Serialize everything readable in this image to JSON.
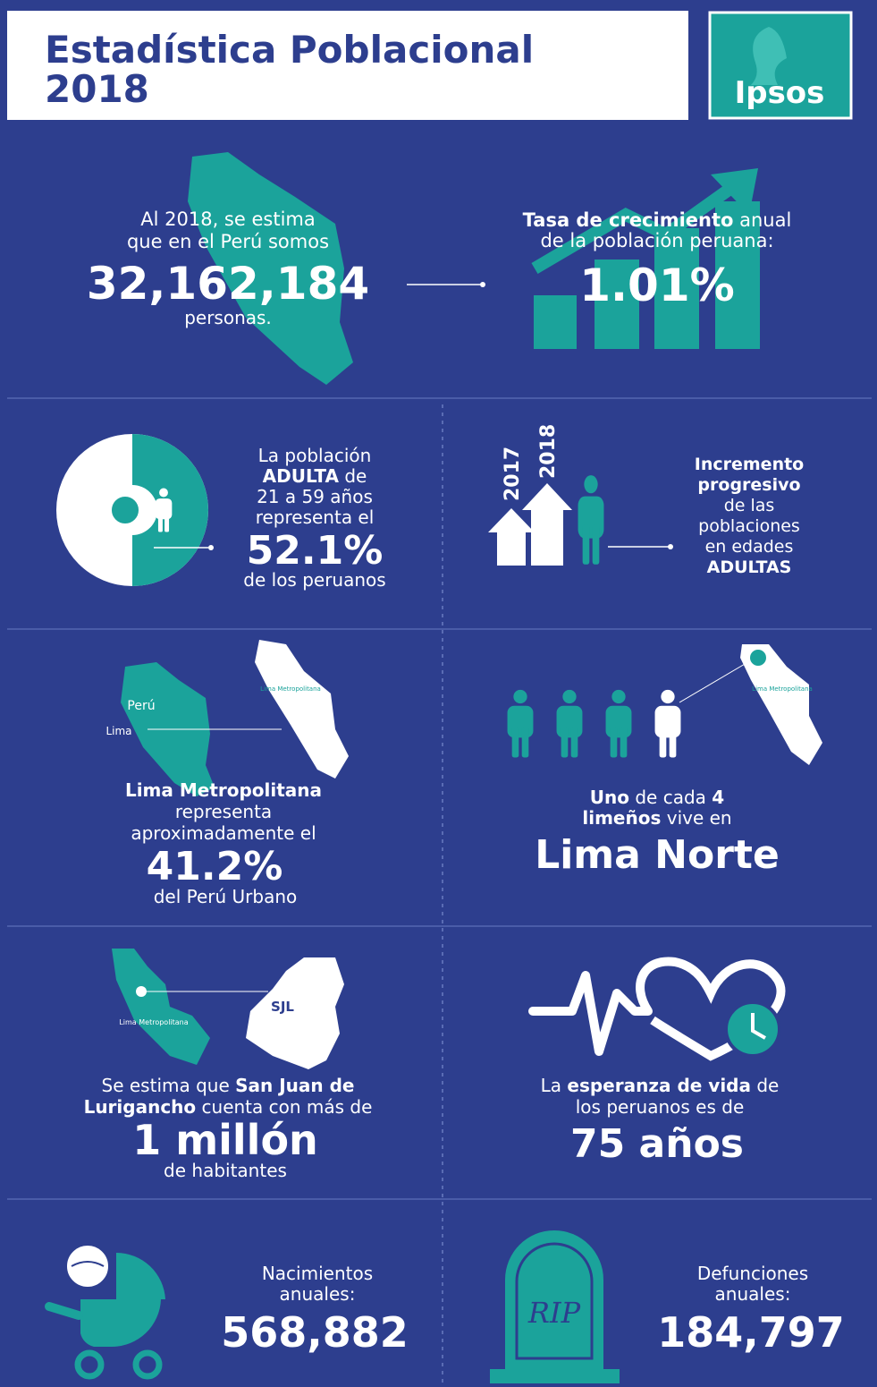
{
  "header": {
    "title_line1": "Estadística Poblacional",
    "title_line2": "2018",
    "logo": "Ipsos"
  },
  "population": {
    "line1": "Al 2018, se estima",
    "line2": "que en el Perú somos",
    "value": "32,162,184",
    "unit": "personas."
  },
  "growth": {
    "bold": "Tasa de crecimiento",
    "rest": " anual",
    "line2": "de la población peruana:",
    "value": "1.01%"
  },
  "adult": {
    "line1": "La población",
    "line2_bold": "ADULTA",
    "line2_rest": " de",
    "line3": "21 a 59 años",
    "line4": "representa el",
    "value": "52.1%",
    "line5": "de los peruanos"
  },
  "increment": {
    "year1": "2017",
    "year2": "2018",
    "line1": "Incremento",
    "line2": "progresivo",
    "line3": "de las",
    "line4": "poblaciones",
    "line5": "en edades",
    "line6": "ADULTAS"
  },
  "lima": {
    "map_peru": "Perú",
    "map_lima": "Lima",
    "map_metro": "Lima Metropolitana",
    "line1": "Lima Metropolitana",
    "line2": "representa",
    "line3": "aproximadamente el",
    "value": "41.2%",
    "line4": "del Perú Urbano"
  },
  "lima_norte": {
    "map_metro": "Lima Metropolitana",
    "bold1": "Uno",
    "rest1": " de cada ",
    "bold2": "4",
    "bold3": "limeños",
    "rest2": " vive en",
    "value": "Lima Norte"
  },
  "sjl": {
    "map_metro": "Lima Metropolitana",
    "map_sjl": "SJL",
    "rest1": "Se estima que ",
    "bold1": "San Juan de",
    "bold2": "Lurigancho",
    "rest2": " cuenta con más de",
    "value": "1 millón",
    "line3": "de habitantes"
  },
  "life": {
    "rest1": "La ",
    "bold": "esperanza de vida",
    "rest2": " de",
    "line2": "los peruanos es de",
    "value": "75 años"
  },
  "births": {
    "line1": "Nacimientos",
    "line2": "anuales:",
    "value": "568,882"
  },
  "deaths": {
    "tomb": "RIP",
    "line1": "Defunciones",
    "line2": "anuales:",
    "value": "184,797"
  }
}
